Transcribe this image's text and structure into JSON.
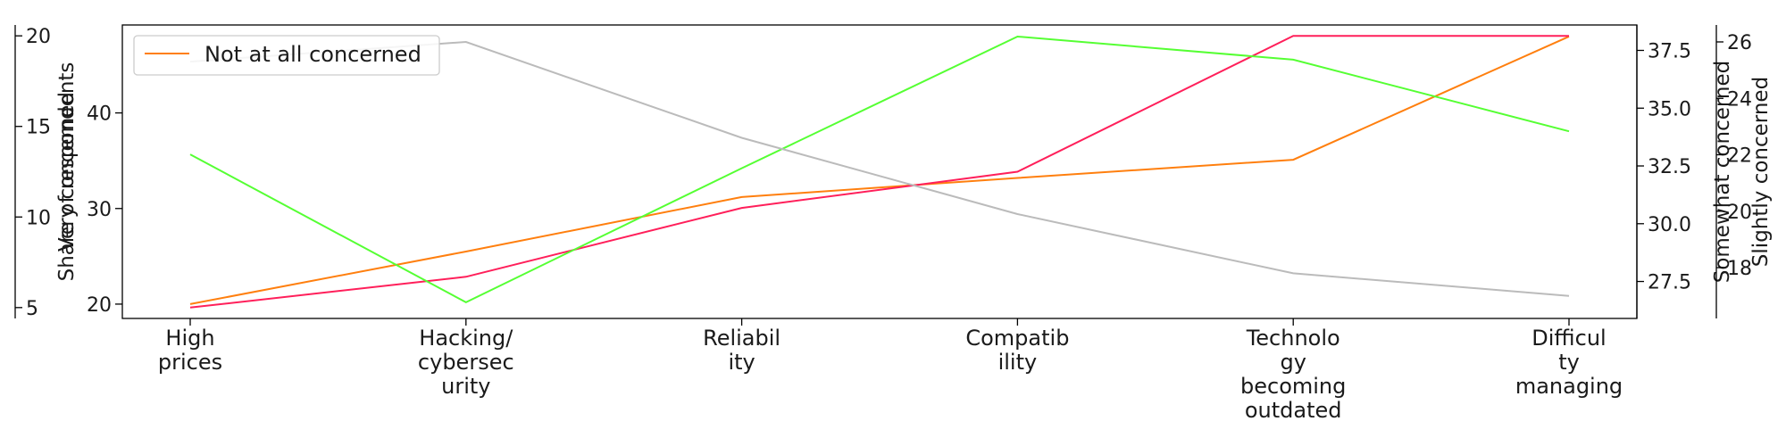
{
  "chart_data": {
    "type": "line",
    "categories": [
      [
        "High",
        "prices"
      ],
      [
        "Hacking/",
        "cybersec",
        "urity"
      ],
      [
        "Reliabil",
        "ity"
      ],
      [
        "Compatib",
        "ility"
      ],
      [
        "Technolo",
        "gy",
        "becoming",
        "outdated"
      ],
      [
        "Difficul",
        "ty",
        "managing"
      ]
    ],
    "axes": {
      "main_left": {
        "label": "Share of respondents",
        "ylim": [
          18.5,
          49.2
        ],
        "ticks": [
          20,
          30,
          40
        ]
      },
      "outer_left": {
        "label": "Very concerned",
        "ylim": [
          4.4,
          20.6
        ],
        "ticks": [
          5,
          10,
          15,
          20
        ]
      },
      "right_1": {
        "label": "Somewhat concerned",
        "ylim": [
          25.9,
          38.6
        ],
        "ticks": [
          27.5,
          30.0,
          32.5,
          35.0,
          37.5
        ],
        "tick_labels": [
          "27.5",
          "30.0",
          "32.5",
          "35.0",
          "37.5"
        ]
      },
      "right_2": {
        "label": "Slightly concerned",
        "ylim": [
          16.2,
          26.6
        ],
        "ticks": [
          18,
          20,
          22,
          24,
          26
        ]
      }
    },
    "series": [
      {
        "name": "Not at all concerned",
        "axis": "main_left",
        "color": "#ff7f0e",
        "values": [
          20,
          25.5,
          31.2,
          33.2,
          35.1,
          48
        ]
      },
      {
        "axis": "outer_left",
        "color": "#ff1f5a",
        "values": [
          5,
          6.7,
          10.5,
          12.5,
          20,
          20
        ]
      },
      {
        "axis": "right_1",
        "color": "#55ff33",
        "values": [
          33,
          26.6,
          32.4,
          38.1,
          37.1,
          34
        ]
      },
      {
        "axis": "right_2",
        "color": "#bbbbbb",
        "values": [
          25.3,
          26,
          22.6,
          19.9,
          17.8,
          17
        ]
      }
    ],
    "legend": {
      "placement": "top-left",
      "entries": [
        "Not at all concerned"
      ]
    },
    "grid": false
  }
}
